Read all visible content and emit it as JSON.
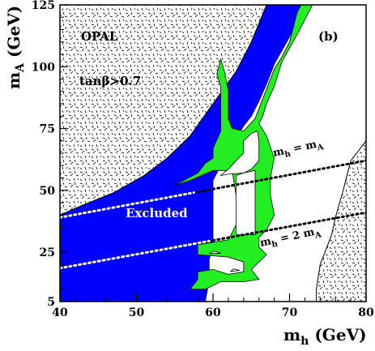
{
  "chart_data": {
    "type": "area",
    "experiment_label": "OPAL",
    "panel_label": "(b)",
    "condition_label": "tanβ>0.7",
    "excluded_label": "Excluded",
    "xlabel": {
      "main": "m",
      "sub": "h",
      "unit": " (GeV)"
    },
    "ylabel": {
      "main": "m",
      "sub": "A",
      "unit": " (GeV)"
    },
    "xlim": [
      40,
      80
    ],
    "ylim": [
      5,
      125
    ],
    "x_ticks": [
      40,
      50,
      60,
      70,
      80
    ],
    "y_ticks": [
      5,
      25,
      50,
      75,
      100,
      125
    ],
    "legend": "none",
    "grid": false,
    "colors": {
      "excluded_blue": "#0000ff",
      "band_green": "#22ee22",
      "theory_stipple": "#ffffff"
    },
    "regions": {
      "theoretically_inaccessible_upper_left": [
        [
          40,
          125
        ],
        [
          40,
          40
        ],
        [
          43,
          44
        ],
        [
          47,
          49
        ],
        [
          51,
          56
        ],
        [
          54,
          63
        ],
        [
          57,
          72
        ],
        [
          60,
          85
        ],
        [
          63,
          98
        ],
        [
          65,
          110
        ],
        [
          67,
          125
        ]
      ],
      "theoretically_inaccessible_lower_right": [
        [
          73.5,
          5
        ],
        [
          80,
          5
        ],
        [
          80,
          70
        ],
        [
          78,
          62
        ],
        [
          77,
          50
        ],
        [
          76,
          39
        ],
        [
          75.5,
          32
        ],
        [
          74,
          20
        ],
        [
          73.5,
          10
        ]
      ],
      "excluded_blue": [
        [
          40,
          5
        ],
        [
          40,
          40
        ],
        [
          43,
          44
        ],
        [
          47,
          49
        ],
        [
          51,
          56
        ],
        [
          54,
          63
        ],
        [
          57,
          72
        ],
        [
          60,
          85
        ],
        [
          63,
          98
        ],
        [
          65,
          110
        ],
        [
          67,
          125
        ],
        [
          72,
          125
        ],
        [
          70,
          112
        ],
        [
          68,
          101
        ],
        [
          67,
          93
        ],
        [
          66,
          86
        ],
        [
          65,
          80
        ],
        [
          64,
          76
        ],
        [
          63,
          71
        ],
        [
          62,
          66
        ],
        [
          61,
          60
        ],
        [
          60,
          54
        ],
        [
          60,
          45
        ],
        [
          60,
          36
        ],
        [
          60,
          28
        ],
        [
          59.5,
          22
        ],
        [
          59.5,
          14
        ],
        [
          59,
          5
        ]
      ],
      "allowed_green": [
        [
          55,
          52
        ],
        [
          58,
          57
        ],
        [
          59,
          61
        ],
        [
          60,
          63
        ],
        [
          60,
          67
        ],
        [
          61,
          74
        ],
        [
          61,
          85
        ],
        [
          61,
          92
        ],
        [
          60.5,
          97
        ],
        [
          61,
          103
        ],
        [
          61.5,
          98
        ],
        [
          62,
          90
        ],
        [
          62,
          79
        ],
        [
          62.5,
          75
        ],
        [
          64,
          74
        ],
        [
          65.5,
          79
        ],
        [
          66.5,
          87
        ],
        [
          68,
          99
        ],
        [
          69,
          104
        ],
        [
          70,
          110
        ],
        [
          70.5,
          116
        ],
        [
          71,
          122
        ],
        [
          71.5,
          125
        ],
        [
          73,
          125
        ],
        [
          71,
          113
        ],
        [
          69,
          102
        ],
        [
          68,
          92
        ],
        [
          67,
          85
        ],
        [
          66.5,
          80
        ],
        [
          66,
          77
        ],
        [
          67,
          72
        ],
        [
          68,
          63
        ],
        [
          67.5,
          55
        ],
        [
          67.5,
          48
        ],
        [
          68,
          40
        ],
        [
          67,
          34
        ],
        [
          66,
          31
        ],
        [
          66,
          27
        ],
        [
          67,
          24
        ],
        [
          66,
          21
        ],
        [
          65,
          18
        ],
        [
          66,
          14
        ],
        [
          64,
          13
        ],
        [
          61,
          13
        ],
        [
          59,
          10
        ],
        [
          57,
          10
        ],
        [
          58,
          14
        ],
        [
          58,
          17
        ],
        [
          60,
          18
        ],
        [
          62,
          16
        ],
        [
          64,
          17
        ],
        [
          64,
          21
        ],
        [
          62,
          23
        ],
        [
          58,
          24
        ],
        [
          58,
          28
        ],
        [
          62,
          30
        ],
        [
          63,
          36
        ],
        [
          63,
          48
        ],
        [
          62.5,
          58
        ],
        [
          60,
          58
        ],
        [
          57,
          54
        ],
        [
          55,
          52
        ]
      ],
      "allowed_white_window": [
        [
          61,
          56
        ],
        [
          62,
          56.5
        ],
        [
          64,
          57
        ],
        [
          65,
          58.5
        ],
        [
          66,
          62
        ],
        [
          66,
          70
        ],
        [
          65.8,
          74
        ],
        [
          65,
          73
        ],
        [
          64,
          70
        ],
        [
          64,
          65
        ],
        [
          63,
          62
        ],
        [
          62,
          58.5
        ],
        [
          61,
          56
        ]
      ],
      "allowed_white_center": [
        [
          63,
          32
        ],
        [
          65.5,
          32
        ],
        [
          65.5,
          40
        ],
        [
          65.5,
          50
        ],
        [
          65.5,
          58
        ],
        [
          64,
          57
        ],
        [
          63,
          56
        ],
        [
          63,
          48
        ],
        [
          63,
          40
        ],
        [
          63,
          32
        ]
      ],
      "allowed_white_islet": [
        [
          59.5,
          24.3
        ],
        [
          61,
          24.6
        ],
        [
          60.2,
          25.4
        ],
        [
          59.5,
          24.3
        ]
      ],
      "allowed_white_islet_2": [
        [
          62.3,
          17.2
        ],
        [
          63.5,
          17.6
        ],
        [
          62.7,
          18.2
        ],
        [
          62.3,
          17.2
        ]
      ]
    },
    "reference_lines": [
      {
        "label_main": "m",
        "label_sub1": "h",
        "label_mid": " = m",
        "label_sub2": "A",
        "label_mid2": "",
        "points": [
          [
            40,
            39
          ],
          [
            80,
            62
          ]
        ]
      },
      {
        "label_main": "m",
        "label_sub1": "h",
        "label_mid": " = 2 m",
        "label_sub2": "A",
        "label_mid2": "",
        "points": [
          [
            40,
            18.5
          ],
          [
            80,
            41
          ]
        ]
      }
    ]
  }
}
